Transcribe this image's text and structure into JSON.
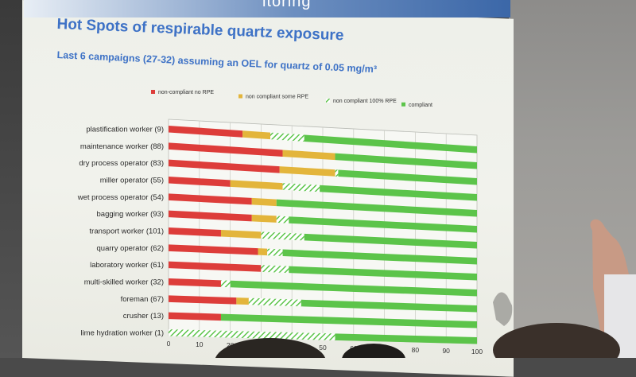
{
  "slide": {
    "banner_text": "itoring",
    "title": "Hot Spots of respirable quartz exposure",
    "subtitle": "Last 6 campaigns (27-32) assuming an OEL for quartz of 0.05 mg/m³"
  },
  "colors": {
    "non_compliant_no_rpe": "#dd3d3a",
    "non_compliant_some_rpe": "#e3b53b",
    "non_compliant_100_rpe": "#5cc44a",
    "compliant": "#5cc44a"
  },
  "chart_data": {
    "type": "bar",
    "orientation": "horizontal",
    "stacked": true,
    "legend_position": "top",
    "grid": true,
    "xlim": [
      0,
      100
    ],
    "xticks": [
      "0",
      "10",
      "20",
      "30",
      "40",
      "50",
      "60",
      "70",
      "80",
      "90",
      "100"
    ],
    "categories": [
      "plastification worker (9)",
      "maintenance worker (88)",
      "dry process operator (83)",
      "miller operator (55)",
      "wet process operator (54)",
      "bagging worker (93)",
      "transport worker (101)",
      "quarry operator (62)",
      "laboratory worker (61)",
      "multi-skilled worker (32)",
      "foreman (67)",
      "crusher (13)",
      "lime hydration worker (1)"
    ],
    "series": [
      {
        "name": "non-compliant no RPE",
        "values": [
          24,
          37,
          36,
          20,
          27,
          27,
          17,
          29,
          30,
          17,
          22,
          17,
          0
        ]
      },
      {
        "name": "non compliant some RPE",
        "values": [
          9,
          17,
          18,
          17,
          8,
          8,
          13,
          3,
          0,
          0,
          4,
          0,
          0
        ]
      },
      {
        "name": "non compliant 100% RPE",
        "values": [
          11,
          0,
          1,
          12,
          0,
          4,
          14,
          5,
          9,
          3,
          17,
          0,
          54
        ]
      },
      {
        "name": "compliant",
        "values": [
          56,
          46,
          45,
          51,
          65,
          61,
          56,
          63,
          61,
          80,
          57,
          83,
          46
        ]
      }
    ]
  }
}
